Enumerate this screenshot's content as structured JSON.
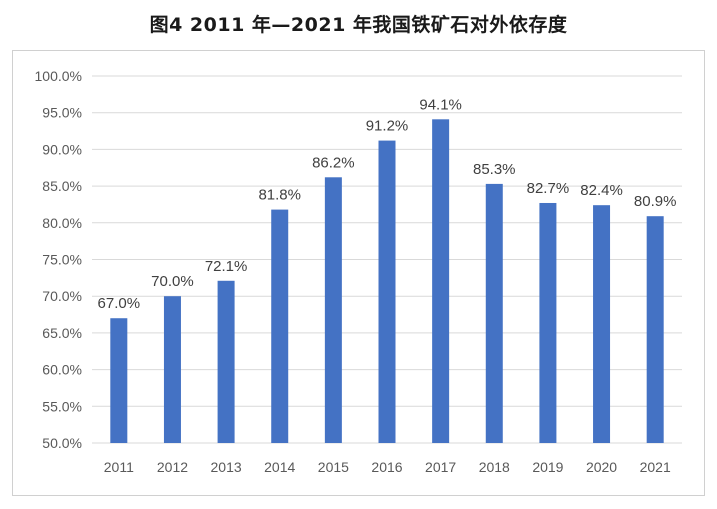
{
  "title": "图4  2011 年—2021 年我国铁矿石对外依存度",
  "chart_data": {
    "type": "bar",
    "title": "图4  2011 年—2021 年我国铁矿石对外依存度",
    "xlabel": "",
    "ylabel": "",
    "categories": [
      "2011",
      "2012",
      "2013",
      "2014",
      "2015",
      "2016",
      "2017",
      "2018",
      "2019",
      "2020",
      "2021"
    ],
    "values": [
      67.0,
      70.0,
      72.1,
      81.8,
      86.2,
      91.2,
      94.1,
      85.3,
      82.7,
      82.4,
      80.9
    ],
    "data_labels": [
      "67.0%",
      "70.0%",
      "72.1%",
      "81.8%",
      "86.2%",
      "91.2%",
      "94.1%",
      "85.3%",
      "82.7%",
      "82.4%",
      "80.9%"
    ],
    "ylim": [
      50,
      100
    ],
    "yticks": [
      50,
      55,
      60,
      65,
      70,
      75,
      80,
      85,
      90,
      95,
      100
    ],
    "ytick_labels": [
      "50.0%",
      "55.0%",
      "60.0%",
      "65.0%",
      "70.0%",
      "75.0%",
      "80.0%",
      "85.0%",
      "90.0%",
      "95.0%",
      "100.0%"
    ],
    "grid": true,
    "legend": "none",
    "bar_color": "#4472c4"
  }
}
